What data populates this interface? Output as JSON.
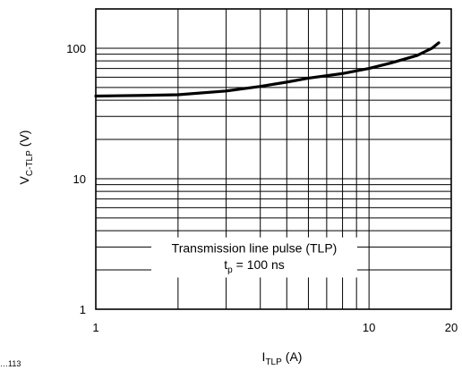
{
  "chart_data": {
    "type": "line",
    "x_scale": "log",
    "y_scale": "log",
    "xlim": [
      1,
      20
    ],
    "ylim": [
      1,
      200
    ],
    "grid": true,
    "x_ticks": [
      {
        "value": 1,
        "label": "1"
      },
      {
        "value": 10,
        "label": "10"
      },
      {
        "value": 20,
        "label": "20"
      }
    ],
    "y_ticks": [
      {
        "value": 1,
        "label": "1"
      },
      {
        "value": 10,
        "label": "10"
      },
      {
        "value": 100,
        "label": "100"
      }
    ],
    "xlabel": {
      "main": "I",
      "sub": "TLP",
      "unit": "(A)"
    },
    "ylabel": {
      "main": "V",
      "sub": "C-TLP",
      "unit": "(V)"
    },
    "annotation": {
      "line1": "Transmission line pulse (TLP)",
      "line2_main": "t",
      "line2_sub": "p",
      "line2_rest": "= 100 ns"
    },
    "footnote": "…113",
    "series": [
      {
        "x": [
          1,
          1.5,
          2,
          3,
          4,
          5,
          6,
          8,
          10,
          12,
          15,
          17,
          18
        ],
        "y": [
          43,
          43.5,
          44,
          47,
          51,
          55,
          59,
          64,
          70,
          77,
          88,
          100,
          110
        ]
      }
    ]
  }
}
